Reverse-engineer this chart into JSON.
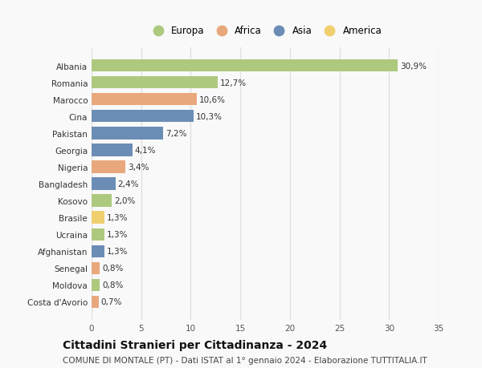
{
  "countries": [
    "Albania",
    "Romania",
    "Marocco",
    "Cina",
    "Pakistan",
    "Georgia",
    "Nigeria",
    "Bangladesh",
    "Kosovo",
    "Brasile",
    "Ucraina",
    "Afghanistan",
    "Senegal",
    "Moldova",
    "Costa d'Avorio"
  ],
  "values": [
    30.9,
    12.7,
    10.6,
    10.3,
    7.2,
    4.1,
    3.4,
    2.4,
    2.0,
    1.3,
    1.3,
    1.3,
    0.8,
    0.8,
    0.7
  ],
  "labels": [
    "30,9%",
    "12,7%",
    "10,6%",
    "10,3%",
    "7,2%",
    "4,1%",
    "3,4%",
    "2,4%",
    "2,0%",
    "1,3%",
    "1,3%",
    "1,3%",
    "0,8%",
    "0,8%",
    "0,7%"
  ],
  "continents": [
    "Europa",
    "Europa",
    "Africa",
    "Asia",
    "Asia",
    "Asia",
    "Africa",
    "Asia",
    "Europa",
    "America",
    "Europa",
    "Asia",
    "Africa",
    "Europa",
    "Africa"
  ],
  "continent_colors": {
    "Europa": "#adc97e",
    "Africa": "#e8a87c",
    "Asia": "#6b8db5",
    "America": "#f0cf6e"
  },
  "legend_order": [
    "Europa",
    "Africa",
    "Asia",
    "America"
  ],
  "title": "Cittadini Stranieri per Cittadinanza - 2024",
  "subtitle": "COMUNE DI MONTALE (PT) - Dati ISTAT al 1° gennaio 2024 - Elaborazione TUTTITALIA.IT",
  "xlim": [
    0,
    35
  ],
  "xticks": [
    0,
    5,
    10,
    15,
    20,
    25,
    30,
    35
  ],
  "background_color": "#f9f9f9",
  "grid_color": "#e0e0e0",
  "bar_height": 0.72,
  "title_fontsize": 10,
  "subtitle_fontsize": 7.5,
  "label_fontsize": 7.5,
  "tick_fontsize": 7.5,
  "legend_fontsize": 8.5
}
